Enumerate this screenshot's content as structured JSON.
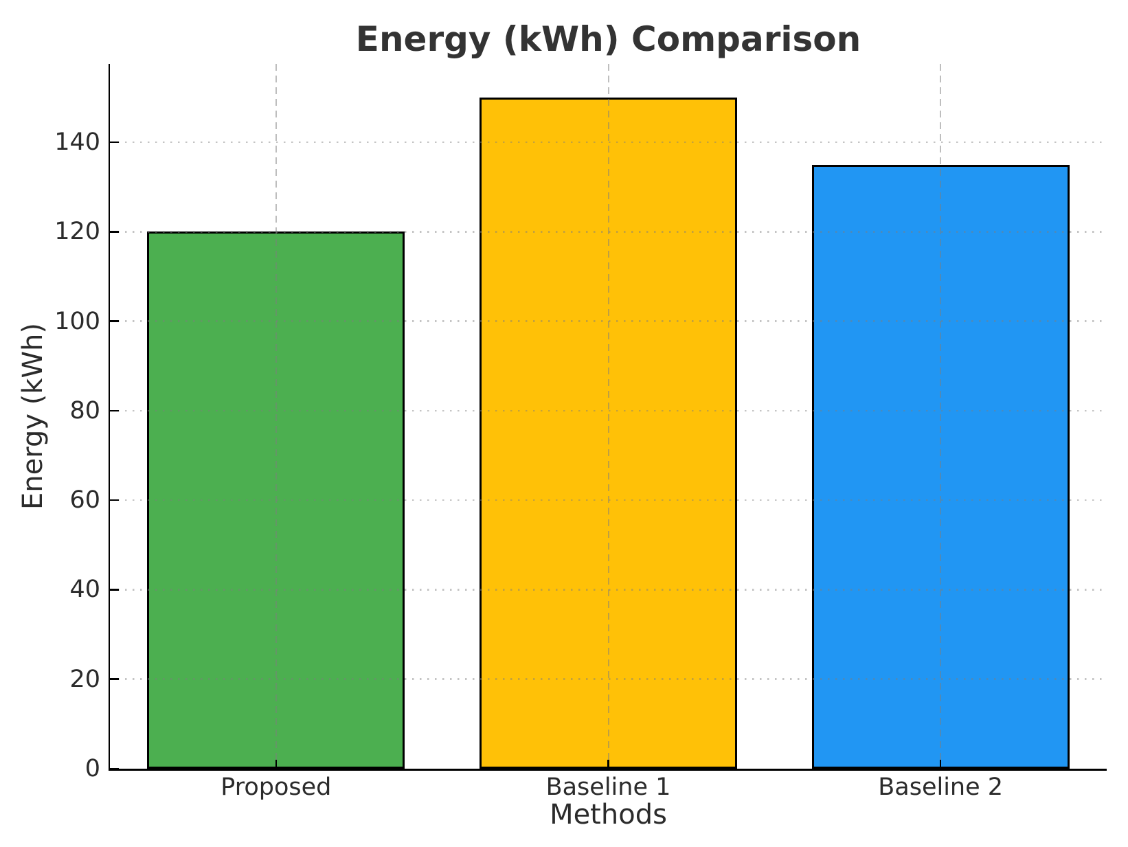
{
  "chart_data": {
    "type": "bar",
    "title": "Energy (kWh) Comparison",
    "xlabel": "Methods",
    "ylabel": "Energy (kWh)",
    "categories": [
      "Proposed",
      "Baseline 1",
      "Baseline 2"
    ],
    "values": [
      120,
      150,
      135
    ],
    "bar_colors": [
      "#4caf50",
      "#ffc107",
      "#2196f3"
    ],
    "bar_edge_color": "#000000",
    "ylim": [
      0,
      157.5
    ],
    "yticks": [
      0,
      20,
      40,
      60,
      80,
      100,
      120,
      140
    ],
    "grid": {
      "horizontal_style": "dotted",
      "vertical_style": "dashed",
      "color": "#c6c6c6",
      "drawn_above_bars": true
    },
    "legend_position": "none",
    "tick_direction": "in",
    "text_color": "#2b2b2b",
    "background_color": "#ffffff"
  }
}
